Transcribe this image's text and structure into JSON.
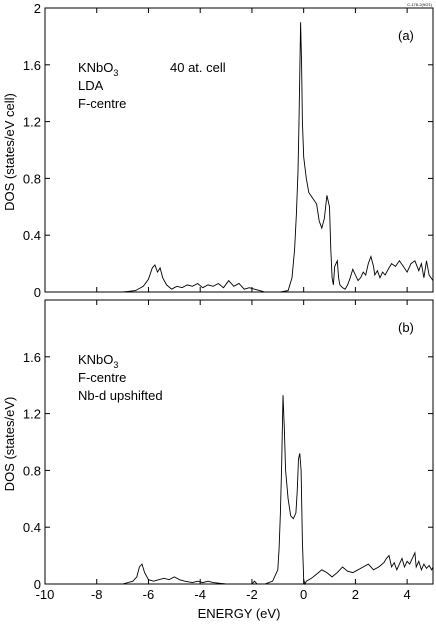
{
  "corner_code": "C-178-2(9/21)",
  "chart_data": [
    {
      "type": "line",
      "panel_label": "(a)",
      "annotations": [
        "KNbO",
        "3",
        "40 at. cell",
        "LDA",
        "F-centre"
      ],
      "xlabel": "ENERGY  (eV)",
      "ylabel": "DOS  (states/eV cell)",
      "xlim": [
        -10,
        5
      ],
      "ylim": [
        0,
        2
      ],
      "x_ticks": [
        -10,
        -8,
        -6,
        -4,
        -2,
        0,
        2,
        4
      ],
      "y_ticks": [
        0,
        0.4,
        0.8,
        1.2,
        1.6,
        2
      ],
      "y_tick_labels": [
        "0",
        "0.4",
        "0.8",
        "1.2",
        "1.6",
        "2"
      ],
      "series": [
        {
          "x": [
            -10,
            -7.0,
            -6.5,
            -6.2,
            -6.0,
            -5.85,
            -5.75,
            -5.65,
            -5.55,
            -5.45,
            -5.3,
            -5.1,
            -5.0,
            -4.9,
            -4.7,
            -4.5,
            -4.3,
            -4.1,
            -3.9,
            -3.7,
            -3.5,
            -3.3,
            -3.1,
            -2.9,
            -2.7,
            -2.5,
            -2.3,
            -2.1,
            -1.9,
            -1.7,
            -1.5,
            -1.2,
            -0.9,
            -0.6,
            -0.45,
            -0.35,
            -0.28,
            -0.22,
            -0.18,
            -0.15,
            -0.12,
            -0.08,
            -0.05,
            0.0,
            0.1,
            0.2,
            0.35,
            0.5,
            0.6,
            0.7,
            0.8,
            0.9,
            1.0,
            1.05,
            1.1,
            1.15,
            1.2,
            1.3,
            1.35,
            1.4,
            1.5,
            1.6,
            1.7,
            1.8,
            1.9,
            2.0,
            2.1,
            2.2,
            2.3,
            2.4,
            2.5,
            2.6,
            2.7,
            2.75,
            2.85,
            2.95,
            3.05,
            3.15,
            3.3,
            3.4,
            3.55,
            3.7,
            3.85,
            4.0,
            4.15,
            4.3,
            4.45,
            4.55,
            4.65,
            4.75,
            4.85,
            5.0
          ],
          "y": [
            0,
            0,
            0.01,
            0.04,
            0.09,
            0.17,
            0.19,
            0.14,
            0.17,
            0.1,
            0.05,
            0.02,
            0.03,
            0.04,
            0.03,
            0.05,
            0.04,
            0.06,
            0.03,
            0.05,
            0.04,
            0.06,
            0.03,
            0.08,
            0.04,
            0.06,
            0.02,
            0.03,
            0.02,
            0.01,
            0.0,
            0.0,
            0.0,
            0.01,
            0.1,
            0.3,
            0.55,
            0.85,
            1.2,
            1.55,
            1.9,
            1.6,
            1.2,
            0.95,
            0.8,
            0.7,
            0.66,
            0.62,
            0.5,
            0.45,
            0.52,
            0.68,
            0.6,
            0.3,
            0.1,
            0.05,
            0.18,
            0.22,
            0.1,
            0.05,
            0.03,
            0.02,
            0.05,
            0.1,
            0.16,
            0.12,
            0.08,
            0.1,
            0.14,
            0.12,
            0.2,
            0.25,
            0.18,
            0.12,
            0.15,
            0.1,
            0.14,
            0.12,
            0.17,
            0.2,
            0.18,
            0.22,
            0.18,
            0.14,
            0.2,
            0.22,
            0.15,
            0.2,
            0.1,
            0.22,
            0.12,
            0.08
          ]
        }
      ]
    },
    {
      "type": "line",
      "panel_label": "(b)",
      "annotations": [
        "KNbO",
        "3",
        "F-centre",
        "Nb-d upshifted"
      ],
      "xlabel": "ENERGY  (eV)",
      "ylabel": "DOS  (states/eV)",
      "xlim": [
        -10,
        5
      ],
      "ylim": [
        0,
        2
      ],
      "x_ticks": [
        -10,
        -8,
        -6,
        -4,
        -2,
        0,
        2,
        4
      ],
      "x_tick_labels": [
        "-10",
        "-8",
        "-6",
        "-4",
        "-2",
        "0",
        "2",
        "4"
      ],
      "y_ticks": [
        0,
        0.4,
        0.8,
        1.2,
        1.6
      ],
      "y_tick_labels": [
        "0",
        "0.4",
        "0.8",
        "1.2",
        "1.6"
      ],
      "series": [
        {
          "x": [
            -10,
            -7.0,
            -6.6,
            -6.45,
            -6.35,
            -6.25,
            -6.15,
            -6.0,
            -5.8,
            -5.6,
            -5.4,
            -5.2,
            -5.0,
            -4.8,
            -4.6,
            -4.3,
            -4.1,
            -3.9,
            -3.7,
            -3.5,
            -3.0,
            -2.5,
            -2.0,
            -1.9,
            -1.8,
            -1.5,
            -1.2,
            -1.0,
            -0.95,
            -0.9,
            -0.85,
            -0.8,
            -0.75,
            -0.7,
            -0.6,
            -0.5,
            -0.4,
            -0.3,
            -0.25,
            -0.2,
            -0.15,
            -0.1,
            -0.05,
            0.0,
            0.05,
            0.1,
            0.3,
            0.5,
            0.7,
            0.9,
            1.1,
            1.3,
            1.5,
            1.7,
            1.9,
            2.1,
            2.3,
            2.5,
            2.7,
            2.9,
            3.1,
            3.2,
            3.3,
            3.4,
            3.5,
            3.6,
            3.7,
            3.8,
            3.9,
            4.0,
            4.1,
            4.2,
            4.3,
            4.35,
            4.45,
            4.55,
            4.65,
            4.75,
            4.85,
            4.95,
            5.0
          ],
          "y": [
            0,
            0,
            0.02,
            0.05,
            0.12,
            0.14,
            0.08,
            0.03,
            0.02,
            0.03,
            0.04,
            0.03,
            0.05,
            0.03,
            0.02,
            0.01,
            0.02,
            0.01,
            0.02,
            0.01,
            0.0,
            0.0,
            0.0,
            0.02,
            0.0,
            0.0,
            0.02,
            0.1,
            0.25,
            0.5,
            0.85,
            1.33,
            1.1,
            0.8,
            0.6,
            0.48,
            0.46,
            0.5,
            0.65,
            0.88,
            0.92,
            0.8,
            0.3,
            0.03,
            0.0,
            0.02,
            0.04,
            0.07,
            0.1,
            0.08,
            0.05,
            0.08,
            0.12,
            0.09,
            0.08,
            0.1,
            0.12,
            0.14,
            0.1,
            0.12,
            0.15,
            0.18,
            0.2,
            0.12,
            0.15,
            0.1,
            0.14,
            0.18,
            0.12,
            0.16,
            0.14,
            0.18,
            0.22,
            0.12,
            0.16,
            0.1,
            0.14,
            0.11,
            0.13,
            0.1,
            0.12
          ]
        }
      ]
    }
  ]
}
